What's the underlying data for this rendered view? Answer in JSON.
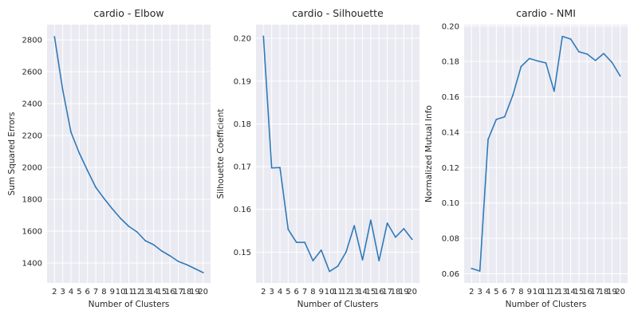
{
  "chart_data": [
    {
      "type": "line",
      "title": "cardio - Elbow",
      "xlabel": "Number of Clusters",
      "ylabel": "Sum Squared Errors",
      "x": [
        2,
        3,
        4,
        5,
        6,
        7,
        8,
        9,
        10,
        11,
        12,
        13,
        14,
        15,
        16,
        17,
        18,
        19,
        20
      ],
      "values": [
        2820,
        2485,
        2220,
        2090,
        1980,
        1875,
        1805,
        1740,
        1680,
        1630,
        1595,
        1540,
        1515,
        1475,
        1445,
        1410,
        1390,
        1365,
        1340
      ],
      "xlim": [
        1.1,
        20.9
      ],
      "ylim": [
        1275,
        2895
      ],
      "yticks": [
        1400,
        1600,
        1800,
        2000,
        2200,
        2400,
        2600,
        2800
      ],
      "ytick_labels": [
        "1400",
        "1600",
        "1800",
        "2000",
        "2200",
        "2400",
        "2600",
        "2800"
      ],
      "grid": true,
      "color": "#2f7ab8"
    },
    {
      "type": "line",
      "title": "cardio - Silhouette",
      "xlabel": "Number of Clusters",
      "ylabel": "Silhouette Coefficient",
      "x": [
        2,
        3,
        4,
        5,
        6,
        7,
        8,
        9,
        10,
        11,
        12,
        13,
        14,
        15,
        16,
        17,
        18,
        19,
        20
      ],
      "values": [
        0.2005,
        0.1697,
        0.1698,
        0.1553,
        0.1523,
        0.1523,
        0.148,
        0.1505,
        0.1455,
        0.1467,
        0.15,
        0.1562,
        0.1482,
        0.1575,
        0.148,
        0.1568,
        0.1535,
        0.1555,
        0.153
      ],
      "xlim": [
        1.1,
        20.9
      ],
      "ylim": [
        0.1428,
        0.2032
      ],
      "yticks": [
        0.15,
        0.16,
        0.17,
        0.18,
        0.19,
        0.2
      ],
      "ytick_labels": [
        "0.15",
        "0.16",
        "0.17",
        "0.18",
        "0.19",
        "0.20"
      ],
      "grid": true,
      "color": "#2f7ab8"
    },
    {
      "type": "line",
      "title": "cardio - NMI",
      "xlabel": "Number of Clusters",
      "ylabel": "Normalized Mutual Info",
      "x": [
        2,
        3,
        4,
        5,
        6,
        7,
        8,
        9,
        10,
        11,
        12,
        13,
        14,
        15,
        16,
        17,
        18,
        19,
        20
      ],
      "values": [
        0.063,
        0.0615,
        0.136,
        0.1473,
        0.1487,
        0.161,
        0.1772,
        0.1817,
        0.1803,
        0.1792,
        0.1632,
        0.1942,
        0.1927,
        0.1855,
        0.1842,
        0.1806,
        0.1845,
        0.1795,
        0.1718
      ],
      "xlim": [
        1.1,
        20.9
      ],
      "ylim": [
        0.0548,
        0.2008
      ],
      "yticks": [
        0.06,
        0.08,
        0.1,
        0.12,
        0.14,
        0.16,
        0.18,
        0.2
      ],
      "ytick_labels": [
        "0.06",
        "0.08",
        "0.10",
        "0.12",
        "0.14",
        "0.16",
        "0.18",
        "0.20"
      ],
      "grid": true,
      "color": "#2f7ab8"
    }
  ]
}
